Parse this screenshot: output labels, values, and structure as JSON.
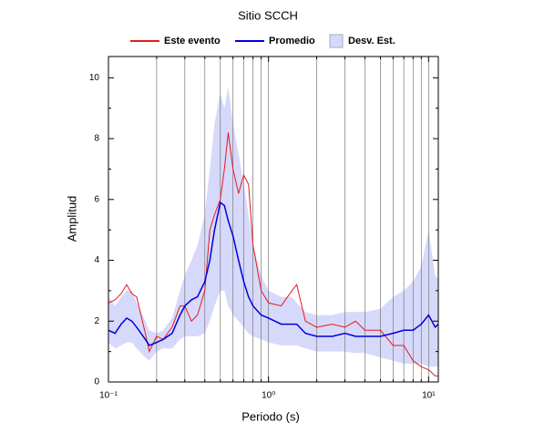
{
  "chart_data": {
    "type": "line",
    "title": "Sitio SCCH",
    "xlabel": "Periodo (s)",
    "ylabel": "Amplitud",
    "xscale": "log",
    "grid": "x",
    "xlim": [
      0.1,
      11.5
    ],
    "ylim": [
      0,
      10.7
    ],
    "xticks": [
      {
        "value": 0.1,
        "label": "10⁻¹"
      },
      {
        "value": 1,
        "label": "10⁰"
      },
      {
        "value": 10,
        "label": "10¹"
      }
    ],
    "x_minor_ticks": [
      0.2,
      0.3,
      0.4,
      0.5,
      0.6,
      0.7,
      0.8,
      0.9,
      2,
      3,
      4,
      5,
      6,
      7,
      8,
      9
    ],
    "yticks": [
      0,
      2,
      4,
      6,
      8,
      10
    ],
    "y_minor_ticks": [
      1,
      3,
      5,
      7,
      9
    ],
    "x": [
      0.1,
      0.11,
      0.12,
      0.13,
      0.14,
      0.15,
      0.17,
      0.18,
      0.2,
      0.22,
      0.25,
      0.28,
      0.3,
      0.33,
      0.36,
      0.4,
      0.43,
      0.46,
      0.5,
      0.53,
      0.56,
      0.6,
      0.65,
      0.7,
      0.75,
      0.8,
      0.9,
      1.0,
      1.2,
      1.4,
      1.5,
      1.7,
      2,
      2.5,
      3,
      3.5,
      4,
      5,
      6,
      7,
      8,
      9,
      10,
      11,
      11.5
    ],
    "band": {
      "name": "Desv. Est.",
      "color": "#d7d9fb",
      "upper": [
        2.8,
        2.5,
        2.8,
        3.0,
        3.0,
        2.6,
        2.0,
        1.7,
        1.6,
        1.7,
        2.1,
        3.0,
        3.5,
        4.0,
        4.5,
        5.5,
        7.0,
        8.5,
        9.5,
        9.0,
        9.7,
        8.5,
        7.5,
        6.5,
        5.5,
        4.5,
        3.5,
        3.0,
        2.8,
        2.8,
        2.6,
        2.3,
        2.2,
        2.2,
        2.3,
        2.3,
        2.3,
        2.4,
        2.8,
        3.0,
        3.3,
        3.8,
        5.0,
        3.5,
        3.4
      ],
      "lower": [
        1.3,
        1.1,
        1.2,
        1.3,
        1.3,
        1.1,
        0.8,
        0.7,
        1.0,
        1.1,
        1.1,
        1.4,
        1.5,
        1.5,
        1.5,
        1.6,
        2.0,
        2.5,
        3.0,
        3.0,
        2.5,
        2.2,
        2.0,
        1.8,
        1.6,
        1.5,
        1.4,
        1.3,
        1.2,
        1.2,
        1.2,
        1.1,
        1.0,
        1.0,
        1.0,
        0.95,
        0.95,
        0.8,
        0.7,
        0.6,
        0.6,
        0.6,
        0.5,
        0.5,
        0.5
      ]
    },
    "series": [
      {
        "name": "Este evento",
        "color": "#e41a1c",
        "values": [
          2.6,
          2.7,
          2.9,
          3.2,
          2.9,
          2.8,
          1.6,
          1.0,
          1.5,
          1.4,
          1.8,
          2.5,
          2.5,
          2.0,
          2.2,
          3.0,
          5.0,
          5.5,
          6.0,
          7.0,
          8.2,
          7.0,
          6.2,
          6.8,
          6.5,
          4.5,
          3.0,
          2.6,
          2.5,
          3.0,
          3.2,
          2.0,
          1.8,
          1.9,
          1.8,
          2.0,
          1.7,
          1.7,
          1.2,
          1.2,
          0.7,
          0.5,
          0.4,
          0.2,
          0.2
        ]
      },
      {
        "name": "Promedio",
        "color": "#0000dd",
        "values": [
          1.7,
          1.6,
          1.9,
          2.1,
          2.0,
          1.8,
          1.4,
          1.2,
          1.3,
          1.4,
          1.6,
          2.2,
          2.5,
          2.7,
          2.8,
          3.3,
          4.0,
          5.0,
          5.9,
          5.8,
          5.3,
          4.8,
          4.0,
          3.3,
          2.8,
          2.5,
          2.2,
          2.1,
          1.9,
          1.9,
          1.9,
          1.6,
          1.5,
          1.5,
          1.6,
          1.5,
          1.5,
          1.5,
          1.6,
          1.7,
          1.7,
          1.9,
          2.2,
          1.8,
          1.9
        ]
      }
    ]
  }
}
